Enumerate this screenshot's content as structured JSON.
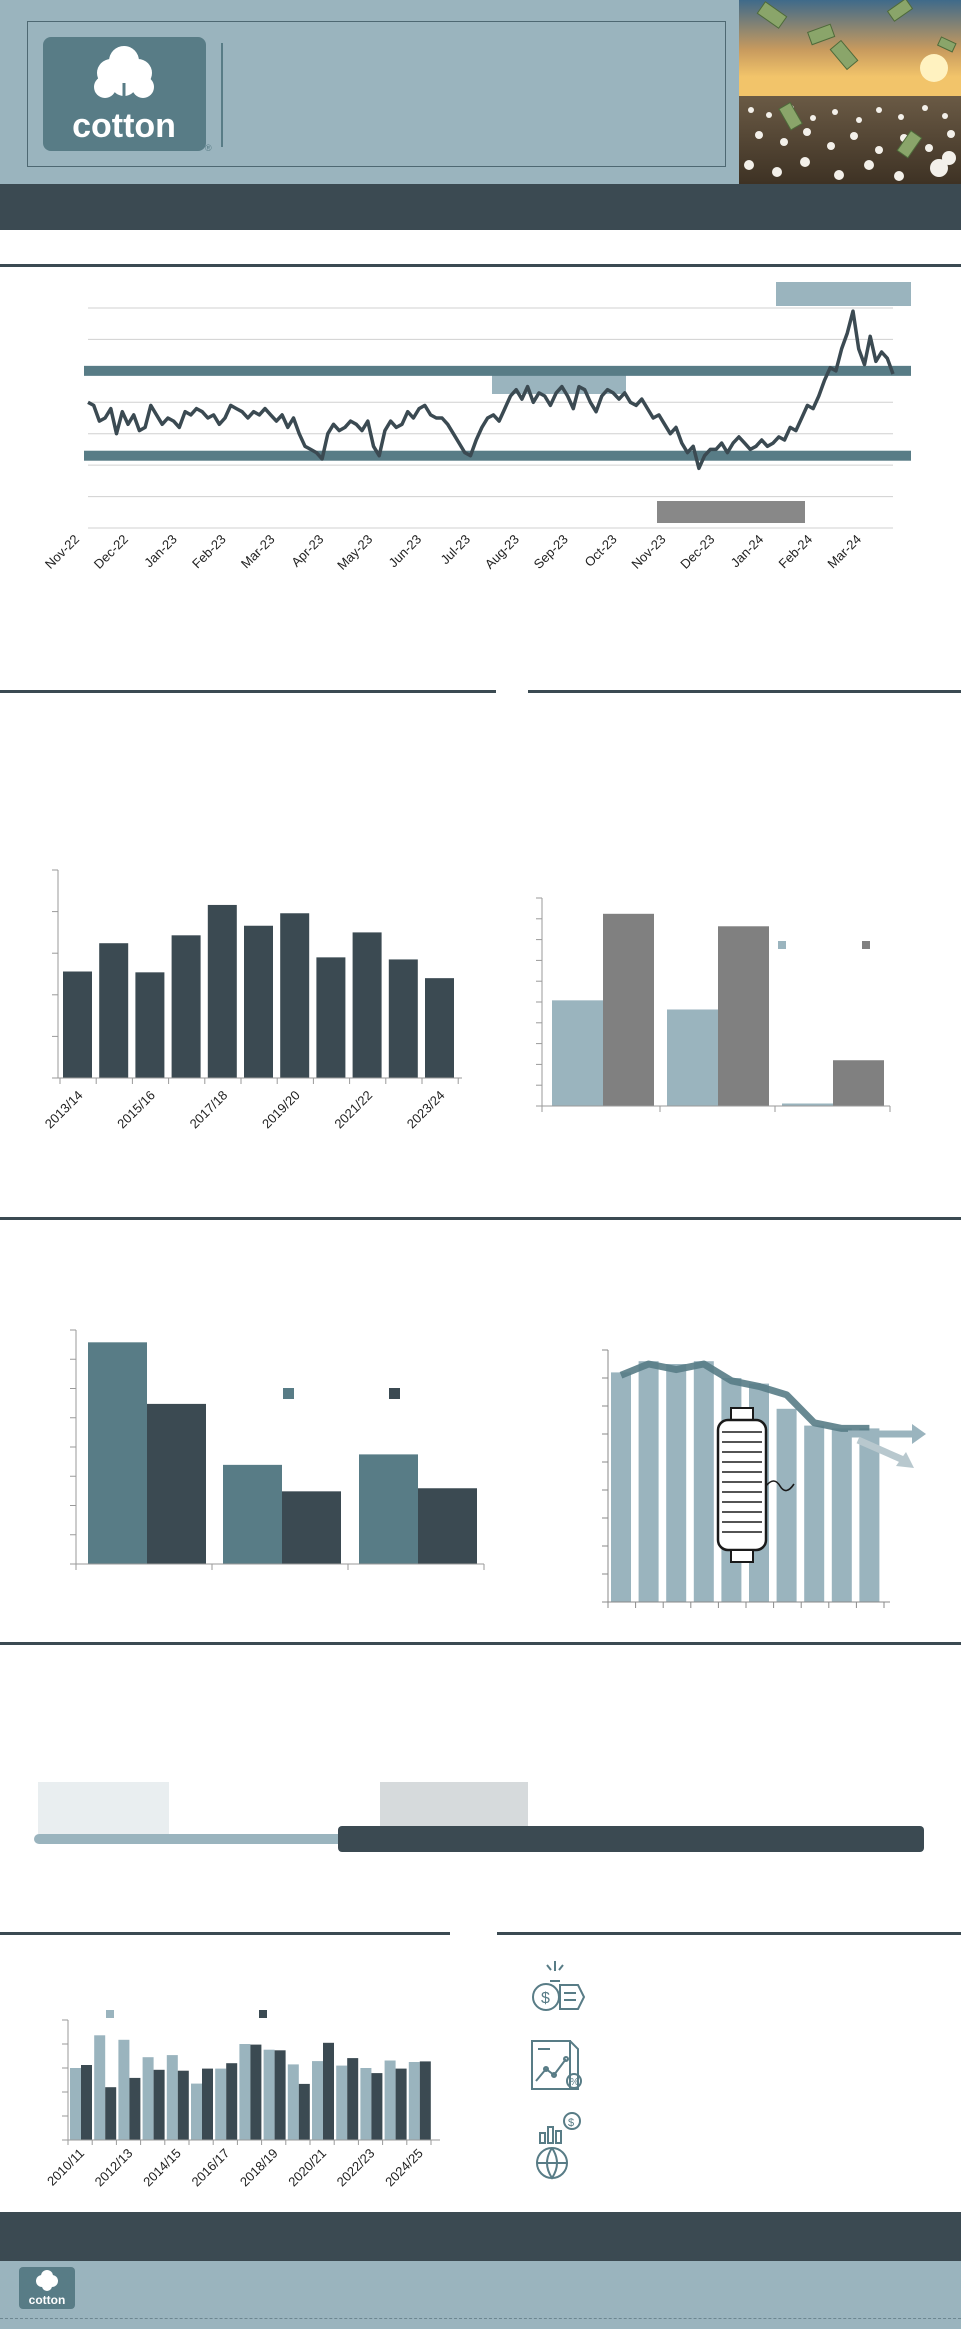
{
  "brand": {
    "logo_text": "cotton",
    "registered_mark": "®"
  },
  "colors": {
    "slate": "#3b4a52",
    "teal": "#587c86",
    "light_blue": "#9ab4be",
    "gray": "#808080",
    "light_gray": "#d6dadc"
  },
  "chart_data": [
    {
      "type": "line",
      "id": "price-history",
      "x_ticks": [
        "Nov-22",
        "Dec-22",
        "Jan-23",
        "Feb-23",
        "Mar-23",
        "Apr-23",
        "May-23",
        "Jun-23",
        "Jul-23",
        "Aug-23",
        "Sep-23",
        "Oct-23",
        "Nov-23",
        "Dec-23",
        "Jan-24",
        "Feb-24",
        "Mar-24"
      ],
      "y_range": [
        0,
        7
      ],
      "reference_bands": [
        5.0,
        2.3
      ],
      "values": [
        4.0,
        3.9,
        3.4,
        3.5,
        3.8,
        3.0,
        3.7,
        3.3,
        3.6,
        3.1,
        3.2,
        3.9,
        3.6,
        3.3,
        3.5,
        3.4,
        3.2,
        3.7,
        3.6,
        3.8,
        3.7,
        3.5,
        3.6,
        3.3,
        3.5,
        3.9,
        3.8,
        3.7,
        3.5,
        3.7,
        3.6,
        3.8,
        3.6,
        3.4,
        3.6,
        3.2,
        3.5,
        3.0,
        2.6,
        2.5,
        2.4,
        2.2,
        3.0,
        3.3,
        3.1,
        3.2,
        3.4,
        3.3,
        3.1,
        3.4,
        2.6,
        2.3,
        3.1,
        3.4,
        3.2,
        3.3,
        3.7,
        3.5,
        3.8,
        3.9,
        3.6,
        3.5,
        3.5,
        3.3,
        3.0,
        2.7,
        2.4,
        2.3,
        2.8,
        3.2,
        3.5,
        3.6,
        3.4,
        3.8,
        4.2,
        4.4,
        4.1,
        4.5,
        4.0,
        4.3,
        4.2,
        3.9,
        4.3,
        4.5,
        4.2,
        3.8,
        4.5,
        4.4,
        4.0,
        3.7,
        4.2,
        4.4,
        4.3,
        4.1,
        4.3,
        4.0,
        3.9,
        4.1,
        3.8,
        3.5,
        3.6,
        3.3,
        3.0,
        3.2,
        2.7,
        2.4,
        2.6,
        1.9,
        2.3,
        2.5,
        2.5,
        2.7,
        2.4,
        2.7,
        2.9,
        2.7,
        2.5,
        2.6,
        2.8,
        2.6,
        2.7,
        2.9,
        2.8,
        3.2,
        3.1,
        3.5,
        3.9,
        3.8,
        4.2,
        4.7,
        5.1,
        5.0,
        5.7,
        6.2,
        6.9,
        5.7,
        5.2,
        6.1,
        5.3,
        5.6,
        5.4,
        4.9
      ]
    },
    {
      "type": "bar",
      "id": "crop-years",
      "categories": [
        "2013/14",
        "",
        "2015/16",
        "",
        "2017/18",
        "",
        "2019/20",
        "",
        "2021/22",
        "",
        "2023/24"
      ],
      "tick_labels_shown": [
        "2013/14",
        "2015/16",
        "2017/18",
        "2019/20",
        "2021/22",
        "2023/24"
      ],
      "values": [
        25.6,
        32.4,
        25.4,
        34.3,
        41.6,
        36.6,
        39.6,
        29.0,
        35.0,
        28.5,
        24.0
      ],
      "ylim": [
        0,
        50
      ]
    },
    {
      "type": "bar",
      "id": "grouped-comparison",
      "categories": [
        "",
        "",
        ""
      ],
      "series": [
        {
          "values": [
            12.7,
            11.6,
            0.3
          ]
        },
        {
          "values": [
            23.1,
            21.6,
            5.5
          ]
        }
      ],
      "ylim": [
        0,
        25
      ]
    },
    {
      "type": "bar",
      "id": "grouped-comparison-2",
      "categories": [
        "",
        "",
        ""
      ],
      "series": [
        {
          "values": [
            36.0,
            16.1,
            17.8
          ]
        },
        {
          "values": [
            26.0,
            11.8,
            12.3
          ]
        }
      ],
      "ylim": [
        0,
        38
      ]
    },
    {
      "type": "bar",
      "id": "yarn-trend",
      "categories": [
        "",
        "",
        "",
        "",
        "",
        "",
        "",
        "",
        "",
        ""
      ],
      "values": [
        8.2,
        8.6,
        8.5,
        8.6,
        8.0,
        7.8,
        6.9,
        6.3,
        6.2,
        6.2
      ],
      "line_values": [
        8.1,
        8.5,
        8.3,
        8.5,
        7.9,
        7.7,
        7.4,
        6.4,
        6.2,
        6.2
      ],
      "ylim": [
        0,
        9
      ]
    },
    {
      "type": "bar",
      "id": "annual-balance",
      "categories": [
        "2010/11",
        "",
        "2012/13",
        "",
        "2014/15",
        "",
        "2016/17",
        "",
        "2018/19",
        "",
        "2020/21",
        "",
        "2022/23",
        "",
        "2024/25"
      ],
      "tick_labels_shown": [
        "2010/11",
        "2012/13",
        "2014/15",
        "2016/17",
        "2018/19",
        "2020/21",
        "2022/23",
        "2024/25"
      ],
      "series": [
        {
          "values": [
            24.0,
            34.9,
            33.4,
            27.6,
            28.3,
            18.8,
            23.8,
            32.0,
            30.1,
            25.2,
            26.3,
            24.8,
            24.0,
            26.5,
            26.0
          ]
        },
        {
          "values": [
            25.0,
            17.6,
            20.7,
            23.4,
            23.1,
            23.8,
            25.6,
            31.8,
            29.9,
            18.7,
            32.4,
            27.3,
            22.3,
            23.8,
            26.2
          ]
        }
      ],
      "ylim": [
        0,
        40
      ]
    }
  ]
}
